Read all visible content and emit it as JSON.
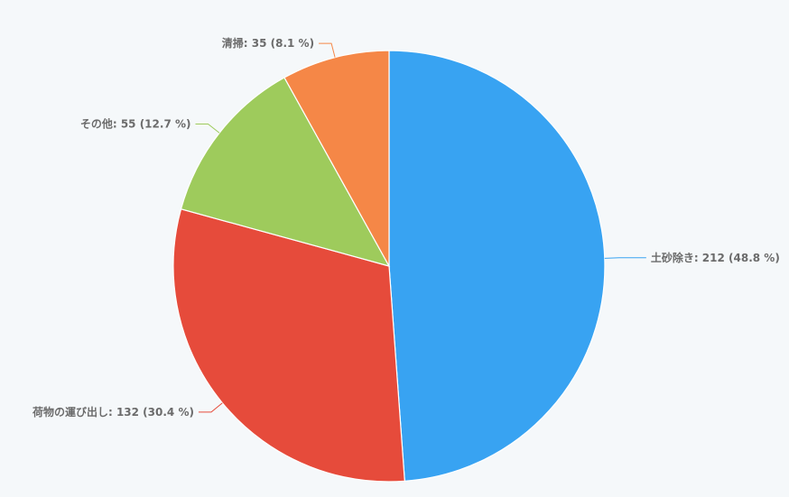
{
  "chart_data": {
    "type": "pie",
    "title": "",
    "start_angle_deg": 0,
    "direction": "clockwise",
    "slices": [
      {
        "label": "土砂除き",
        "value": 212,
        "percent": 48.8,
        "color": "#38a3f2",
        "text": "土砂除き: 212 (48.8 %)",
        "label_side": "right"
      },
      {
        "label": "荷物の運び出し",
        "value": 132,
        "percent": 30.4,
        "color": "#e64b3b",
        "text": "荷物の運び出し: 132 (30.4 %)",
        "label_side": "left"
      },
      {
        "label": "その他",
        "value": 55,
        "percent": 12.7,
        "color": "#9ecb5c",
        "text": "その他: 55 (12.7 %)",
        "label_side": "left"
      },
      {
        "label": "清掃",
        "value": 35,
        "percent": 8.1,
        "color": "#f58747",
        "text": "清掃: 35 (8.1 %)",
        "label_side": "left"
      }
    ]
  }
}
